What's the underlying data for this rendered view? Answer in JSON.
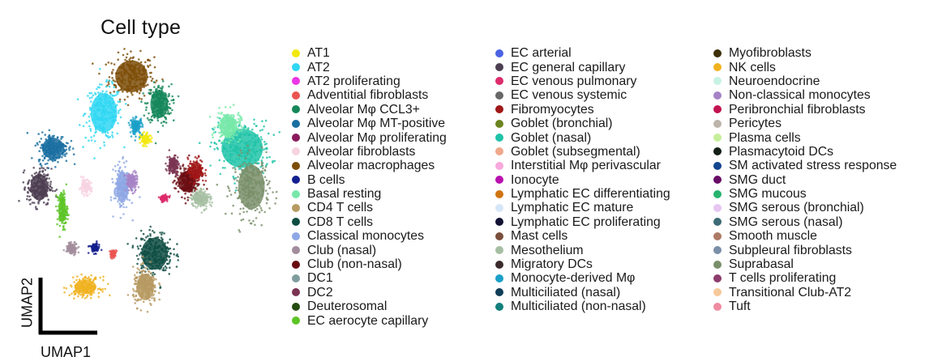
{
  "chart_data": {
    "type": "scatter",
    "title": "Cell type",
    "xlabel": "UMAP1",
    "ylabel": "UMAP2",
    "legend_position": "right",
    "categories": [
      {
        "name": "AT1",
        "color": "#f2e80f"
      },
      {
        "name": "AT2",
        "color": "#2fd7f3"
      },
      {
        "name": "AT2 proliferating",
        "color": "#ea36e8"
      },
      {
        "name": "Adventitial fibroblasts",
        "color": "#ea5552"
      },
      {
        "name": "Alveolar Mφ CCL3+",
        "color": "#15875a"
      },
      {
        "name": "Alveolar Mφ MT-positive",
        "color": "#1a6fa1"
      },
      {
        "name": "Alveolar Mφ proliferating",
        "color": "#8b1a5c"
      },
      {
        "name": "Alveolar fibroblasts",
        "color": "#f7d3e2"
      },
      {
        "name": "Alveolar macrophages",
        "color": "#7d4d08"
      },
      {
        "name": "B cells",
        "color": "#141f8f"
      },
      {
        "name": "Basal resting",
        "color": "#77e8a9"
      },
      {
        "name": "CD4 T cells",
        "color": "#b69a62"
      },
      {
        "name": "CD8 T cells",
        "color": "#0f4e43"
      },
      {
        "name": "Classical monocytes",
        "color": "#8fa7e5"
      },
      {
        "name": "Club (nasal)",
        "color": "#a28d9c"
      },
      {
        "name": "Club (non-nasal)",
        "color": "#6a0d12"
      },
      {
        "name": "DC1",
        "color": "#7f9d9f"
      },
      {
        "name": "DC2",
        "color": "#7b3553"
      },
      {
        "name": "Deuterosomal",
        "color": "#254d12"
      },
      {
        "name": "EC aerocyte capillary",
        "color": "#5cc425"
      },
      {
        "name": "EC arterial",
        "color": "#4b63e3"
      },
      {
        "name": "EC general capillary",
        "color": "#4d3f52"
      },
      {
        "name": "EC venous pulmonary",
        "color": "#dd2b6b"
      },
      {
        "name": "EC venous systemic",
        "color": "#676767"
      },
      {
        "name": "Fibromyocytes",
        "color": "#a01717"
      },
      {
        "name": "Goblet (bronchial)",
        "color": "#6b8420"
      },
      {
        "name": "Goblet (nasal)",
        "color": "#1fc3a8"
      },
      {
        "name": "Goblet (subsegmental)",
        "color": "#f0a88b"
      },
      {
        "name": "Interstitial Mφ perivascular",
        "color": "#f7a8dc"
      },
      {
        "name": "Ionocyte",
        "color": "#b90fae"
      },
      {
        "name": "Lymphatic EC differentiating",
        "color": "#d07412"
      },
      {
        "name": "Lymphatic EC mature",
        "color": "#d6e6f7"
      },
      {
        "name": "Lymphatic EC proliferating",
        "color": "#121233"
      },
      {
        "name": "Mast cells",
        "color": "#7a4f3c"
      },
      {
        "name": "Mesothelium",
        "color": "#a6bfa2"
      },
      {
        "name": "Migratory DCs",
        "color": "#3a2a2c"
      },
      {
        "name": "Monocyte-derived Mφ",
        "color": "#1aa0c8"
      },
      {
        "name": "Multiciliated (nasal)",
        "color": "#0f3d57"
      },
      {
        "name": "Multiciliated (non-nasal)",
        "color": "#12807c"
      },
      {
        "name": "Myofibroblasts",
        "color": "#3d3008"
      },
      {
        "name": "NK cells",
        "color": "#f0b21f"
      },
      {
        "name": "Neuroendocrine",
        "color": "#c8f2e3"
      },
      {
        "name": "Non-classical monocytes",
        "color": "#a683c6"
      },
      {
        "name": "Peribronchial fibroblasts",
        "color": "#c2124f"
      },
      {
        "name": "Pericytes",
        "color": "#bdb5ab"
      },
      {
        "name": "Plasma cells",
        "color": "#c6ef9a"
      },
      {
        "name": "Plasmacytoid DCs",
        "color": "#142015"
      },
      {
        "name": "SM activated stress response",
        "color": "#14458f"
      },
      {
        "name": "SMG duct",
        "color": "#680c66"
      },
      {
        "name": "SMG mucous",
        "color": "#27b46f"
      },
      {
        "name": "SMG serous (bronchial)",
        "color": "#e7c6f2"
      },
      {
        "name": "SMG serous (nasal)",
        "color": "#3d6b76"
      },
      {
        "name": "Smooth muscle",
        "color": "#ad7a66"
      },
      {
        "name": "Subpleural fibroblasts",
        "color": "#7b8fa8"
      },
      {
        "name": "Suprabasal",
        "color": "#798f69"
      },
      {
        "name": "T cells proliferating",
        "color": "#8d3c6d"
      },
      {
        "name": "Transitional Club-AT2",
        "color": "#f6c99a"
      },
      {
        "name": "Tuft",
        "color": "#ef8ca2"
      }
    ],
    "columns": [
      [
        "AT1",
        "AT2",
        "AT2 proliferating",
        "Adventitial fibroblasts",
        "Alveolar Mφ CCL3+",
        "Alveolar Mφ MT-positive",
        "Alveolar Mφ proliferating",
        "Alveolar fibroblasts",
        "Alveolar macrophages",
        "B cells",
        "Basal resting",
        "CD4 T cells",
        "CD8 T cells",
        "Classical monocytes",
        "Club (nasal)",
        "Club (non-nasal)",
        "DC1",
        "DC2",
        "Deuterosomal",
        "EC aerocyte capillary"
      ],
      [
        "EC arterial",
        "EC general capillary",
        "EC venous pulmonary",
        "EC venous systemic",
        "Fibromyocytes",
        "Goblet (bronchial)",
        "Goblet (nasal)",
        "Goblet (subsegmental)",
        "Interstitial Mφ perivascular",
        "Ionocyte",
        "Lymphatic EC differentiating",
        "Lymphatic EC mature",
        "Lymphatic EC proliferating",
        "Mast cells",
        "Mesothelium",
        "Migratory DCs",
        "Monocyte-derived Mφ",
        "Multiciliated (nasal)",
        "Multiciliated (non-nasal)"
      ],
      [
        "Myofibroblasts",
        "NK cells",
        "Neuroendocrine",
        "Non-classical monocytes",
        "Peribronchial fibroblasts",
        "Pericytes",
        "Plasma cells",
        "Plasmacytoid DCs",
        "SM activated stress response",
        "SMG duct",
        "SMG mucous",
        "SMG serous (bronchial)",
        "SMG serous (nasal)",
        "Smooth muscle",
        "Subpleural fibroblasts",
        "Suprabasal",
        "T cells proliferating",
        "Transitional Club-AT2",
        "Tuft"
      ]
    ],
    "clusters": [
      {
        "category": "Alveolar macrophages",
        "cx": -0.35,
        "cy": 0.75,
        "rx": 0.22,
        "ry": 0.18
      },
      {
        "category": "AT2",
        "cx": -0.65,
        "cy": 0.42,
        "rx": 0.18,
        "ry": 0.22
      },
      {
        "category": "Alveolar Mφ CCL3+",
        "cx": -0.05,
        "cy": 0.5,
        "rx": 0.12,
        "ry": 0.16
      },
      {
        "category": "Goblet (nasal)",
        "cx": 0.85,
        "cy": 0.1,
        "rx": 0.28,
        "ry": 0.22
      },
      {
        "category": "Suprabasal",
        "cx": 0.95,
        "cy": -0.25,
        "rx": 0.18,
        "ry": 0.25
      },
      {
        "category": "Basal resting",
        "cx": 0.7,
        "cy": 0.3,
        "rx": 0.12,
        "ry": 0.12
      },
      {
        "category": "EC general capillary",
        "cx": -1.35,
        "cy": -0.25,
        "rx": 0.12,
        "ry": 0.15
      },
      {
        "category": "Alveolar Mφ MT-positive",
        "cx": -1.2,
        "cy": 0.1,
        "rx": 0.15,
        "ry": 0.12
      },
      {
        "category": "EC aerocyte capillary",
        "cx": -1.1,
        "cy": -0.45,
        "rx": 0.05,
        "ry": 0.15
      },
      {
        "category": "Club (non-nasal)",
        "cx": 0.25,
        "cy": -0.2,
        "rx": 0.12,
        "ry": 0.12
      },
      {
        "category": "Fibromyocytes",
        "cx": 0.35,
        "cy": -0.1,
        "rx": 0.08,
        "ry": 0.1
      },
      {
        "category": "CD8 T cells",
        "cx": -0.1,
        "cy": -0.85,
        "rx": 0.18,
        "ry": 0.18
      },
      {
        "category": "CD4 T cells",
        "cx": -0.2,
        "cy": -1.15,
        "rx": 0.12,
        "ry": 0.15
      },
      {
        "category": "NK cells",
        "cx": -0.85,
        "cy": -1.15,
        "rx": 0.15,
        "ry": 0.08
      },
      {
        "category": "B cells",
        "cx": -0.75,
        "cy": -0.8,
        "rx": 0.05,
        "ry": 0.04
      },
      {
        "category": "Classical monocytes",
        "cx": -0.45,
        "cy": -0.25,
        "rx": 0.08,
        "ry": 0.18
      },
      {
        "category": "Non-classical monocytes",
        "cx": -0.35,
        "cy": -0.2,
        "rx": 0.06,
        "ry": 0.08
      },
      {
        "category": "AT1",
        "cx": -0.2,
        "cy": 0.18,
        "rx": 0.05,
        "ry": 0.05
      },
      {
        "category": "Club (nasal)",
        "cx": -1.0,
        "cy": -0.8,
        "rx": 0.06,
        "ry": 0.05
      },
      {
        "category": "Adventitial fibroblasts",
        "cx": -0.55,
        "cy": -0.85,
        "rx": 0.03,
        "ry": 0.03
      },
      {
        "category": "Mesothelium",
        "cx": 0.4,
        "cy": -0.35,
        "rx": 0.1,
        "ry": 0.08
      },
      {
        "category": "DC2",
        "cx": 0.1,
        "cy": -0.05,
        "rx": 0.06,
        "ry": 0.08
      },
      {
        "category": "EC venous pulmonary",
        "cx": 0.0,
        "cy": -0.35,
        "rx": 0.05,
        "ry": 0.03
      },
      {
        "category": "Alveolar fibroblasts",
        "cx": -0.85,
        "cy": -0.25,
        "rx": 0.06,
        "ry": 0.06
      },
      {
        "category": "Monocyte-derived Mφ",
        "cx": -0.3,
        "cy": 0.3,
        "rx": 0.06,
        "ry": 0.07
      }
    ]
  }
}
